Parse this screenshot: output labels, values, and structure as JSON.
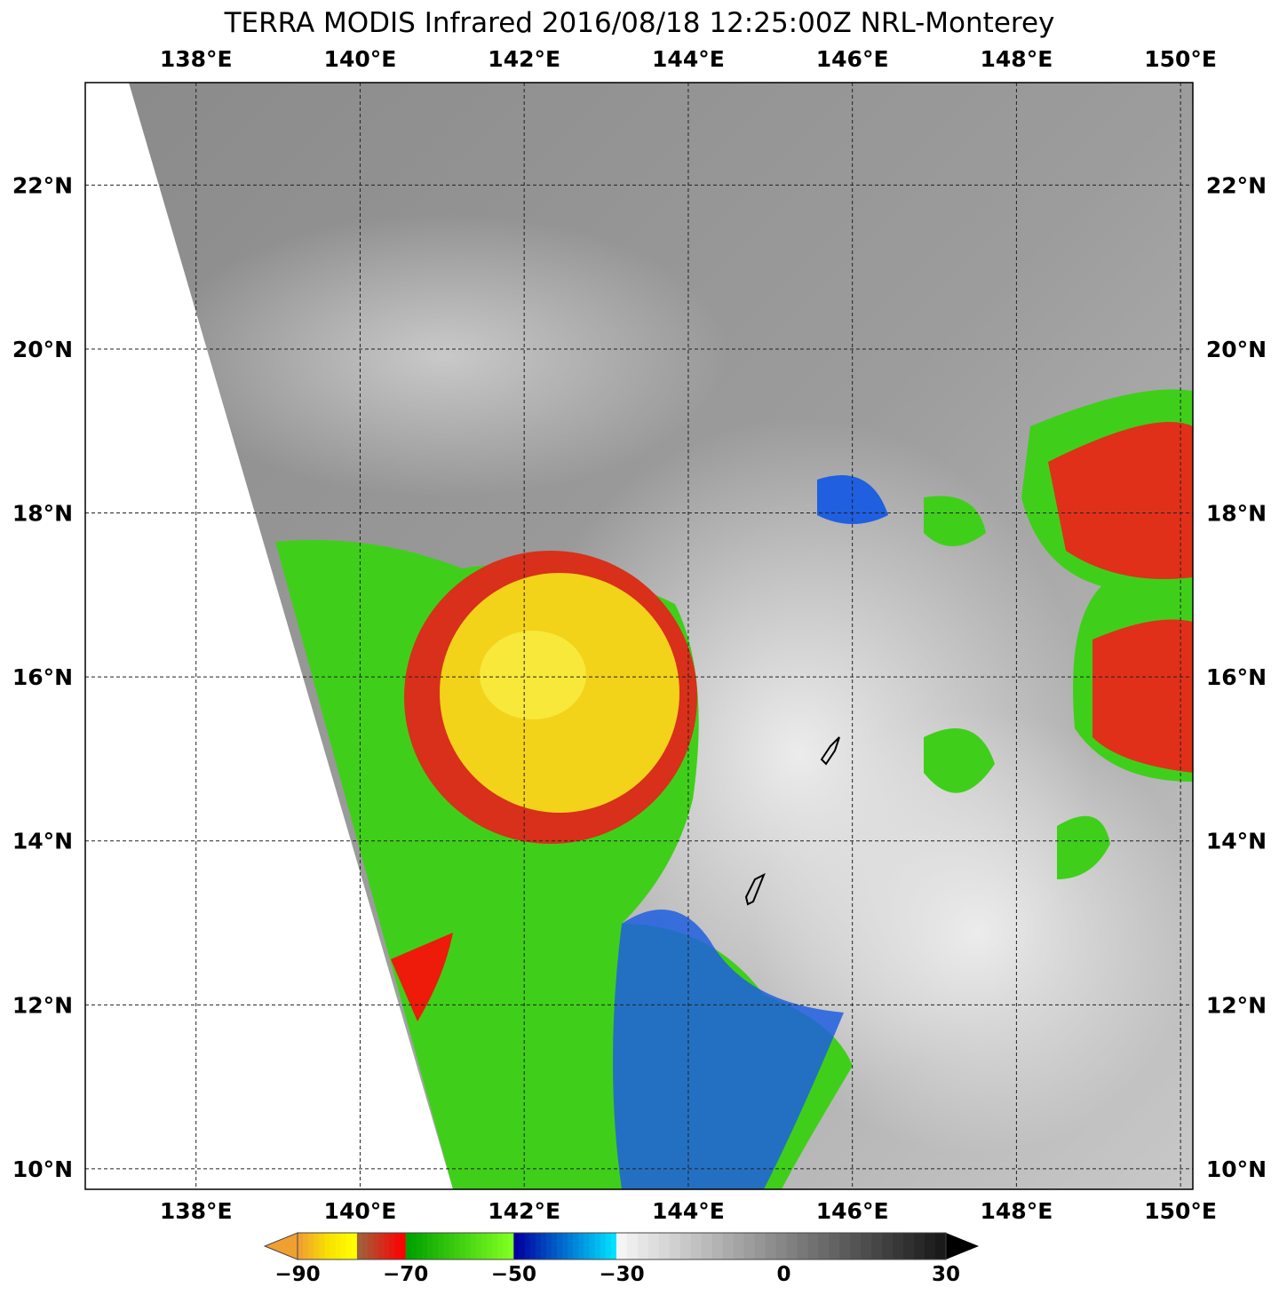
{
  "title": "TERRA MODIS Infrared 2016/08/18 12:25:00Z NRL-Monterey",
  "map": {
    "lon_range": [
      136.65,
      150.15
    ],
    "lat_range": [
      9.75,
      23.25
    ],
    "lon_ticks": [
      138,
      140,
      142,
      144,
      146,
      148,
      150
    ],
    "lon_labels": [
      "138°E",
      "140°E",
      "142°E",
      "144°E",
      "146°E",
      "148°E",
      "150°E"
    ],
    "lat_ticks": [
      22,
      20,
      18,
      16,
      14,
      12,
      10
    ],
    "lat_labels": [
      "22°N",
      "20°N",
      "18°N",
      "16°N",
      "14°N",
      "12°N",
      "10°N"
    ],
    "gridlines": "dashed",
    "features": [
      {
        "name": "storm-cold-cloud-top",
        "lon": 142.1,
        "lat": 15.8,
        "color": "#f5d400"
      },
      {
        "name": "guam",
        "lon": 144.8,
        "lat": 13.45
      },
      {
        "name": "saipan-tinian",
        "lon": 145.6,
        "lat": 15.1
      }
    ]
  },
  "colorbar": {
    "unit_range": [
      -90,
      30
    ],
    "tick_values": [
      -90,
      -70,
      -50,
      -30,
      0,
      30
    ],
    "tick_labels": [
      "−90",
      "−70",
      "−50",
      "−30",
      "0",
      "30"
    ],
    "segments": [
      {
        "from": -90,
        "to": -79,
        "colors": [
          "#f0a030",
          "#f8e000",
          "#ffff00"
        ]
      },
      {
        "from": -79,
        "to": -70,
        "colors": [
          "#a0603a",
          "#ff0000"
        ]
      },
      {
        "from": -70,
        "to": -50,
        "colors": [
          "#00a000",
          "#80ff20"
        ]
      },
      {
        "from": -50,
        "to": -31,
        "colors": [
          "#0000a0",
          "#00e0ff"
        ]
      },
      {
        "from": -31,
        "to": 30,
        "colors": [
          "#f4f4f4",
          "#1a1a1a"
        ]
      }
    ],
    "under_color": "#f0a030",
    "over_color": "#000000"
  }
}
